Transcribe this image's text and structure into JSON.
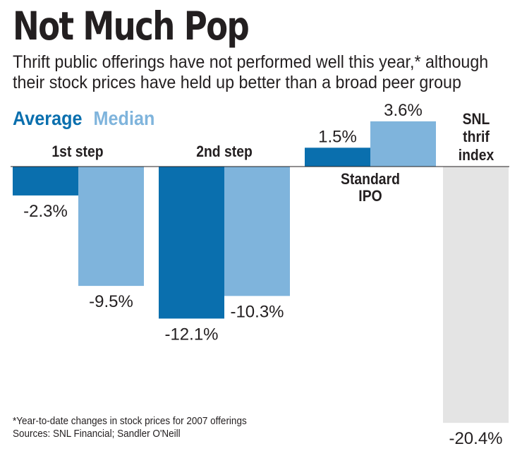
{
  "header": {
    "title": "Not Much Pop",
    "subtitle_line1": "Thrift public offerings have not performed well this year,* although",
    "subtitle_line2": "their stock prices have held up better than a broad peer group"
  },
  "legend": {
    "average": "Average",
    "median": "Median"
  },
  "colors": {
    "average": "#0a6fae",
    "median": "#7fb4dc",
    "index": "#e4e4e4",
    "text": "#231f20"
  },
  "chart_data": {
    "type": "bar",
    "categories": [
      "1st step",
      "2nd step",
      "Standard IPO",
      "SNL thrif index"
    ],
    "category_lines": [
      [
        "1st step"
      ],
      [
        "2nd step"
      ],
      [
        "Standard",
        "IPO"
      ],
      [
        "SNL",
        "thrif",
        "index"
      ]
    ],
    "series": [
      {
        "name": "Average",
        "values": [
          -2.3,
          -12.1,
          1.5,
          null
        ],
        "labels": [
          "-2.3%",
          "-12.1%",
          "1.5%",
          null
        ]
      },
      {
        "name": "Median",
        "values": [
          -9.5,
          -10.3,
          3.6,
          null
        ],
        "labels": [
          "-9.5%",
          "-10.3%",
          "3.6%",
          null
        ]
      },
      {
        "name": "",
        "values": [
          null,
          null,
          null,
          -20.4
        ],
        "labels": [
          null,
          null,
          null,
          "-20.4%"
        ]
      }
    ],
    "ylim": [
      -20.4,
      3.6
    ],
    "grid": false,
    "legend_position": "top-left"
  },
  "footer": {
    "footnote": "*Year-to-date changes in stock prices for 2007 offerings",
    "sources": "Sources: SNL Financial; Sandler O'Neill"
  }
}
